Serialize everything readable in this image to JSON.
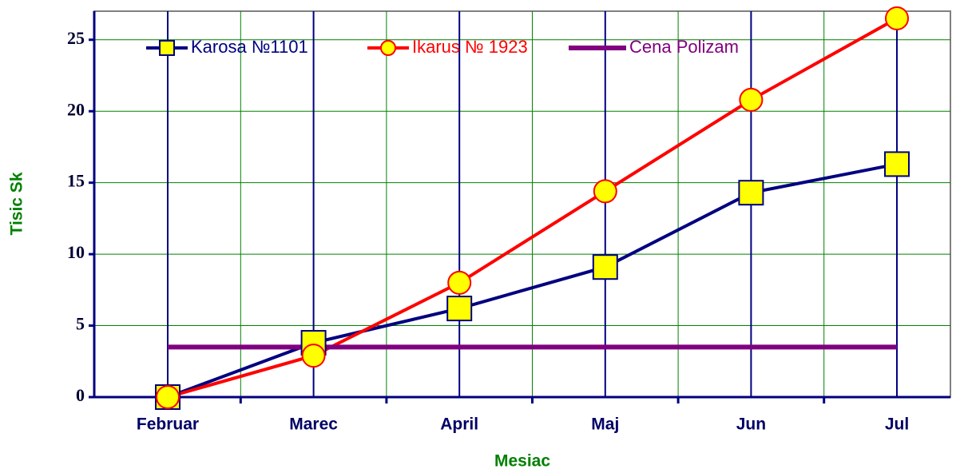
{
  "chart_data": {
    "type": "line",
    "categories": [
      "Februar",
      "Marec",
      "April",
      "Maj",
      "Jun",
      "Jul"
    ],
    "series": [
      {
        "name": "Karosa №1101",
        "color": "#000080",
        "marker": "square",
        "values": [
          0,
          3.8,
          6.2,
          9.1,
          14.3,
          16.3
        ]
      },
      {
        "name": "Ikarus № 1923",
        "color": "#ff0000",
        "marker": "circle",
        "values": [
          0,
          2.9,
          8.0,
          14.4,
          20.8,
          26.5
        ]
      },
      {
        "name": "Cena Polizam",
        "color": "#800080",
        "marker": "none",
        "values": [
          3.5,
          3.5,
          3.5,
          3.5,
          3.5,
          3.5
        ]
      }
    ],
    "xlabel": "Mesiac",
    "ylabel": "Tisic Sk",
    "ylim": [
      0,
      27
    ],
    "yticks": [
      0,
      5,
      10,
      15,
      20,
      25
    ],
    "grid": true,
    "legend": "top"
  }
}
